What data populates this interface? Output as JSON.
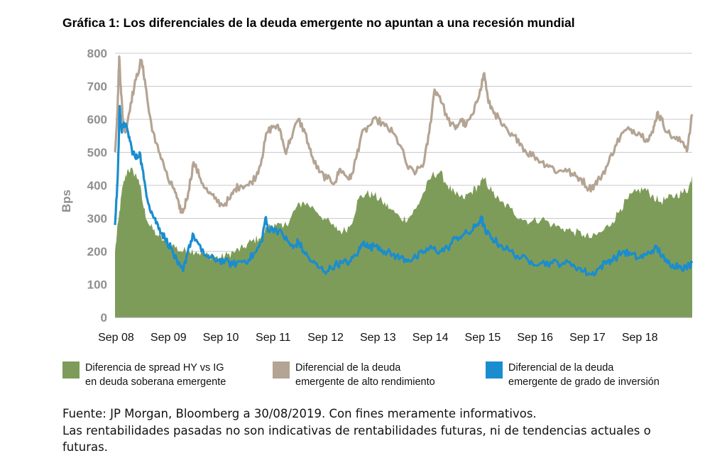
{
  "title": "Gráfica 1: Los diferenciales de la deuda emergente no apuntan a una recesión mundial",
  "chart_data": {
    "type": "area",
    "ylabel": "Bps",
    "ylim": [
      0,
      800
    ],
    "yticks": [
      0,
      100,
      200,
      300,
      400,
      500,
      600,
      700,
      800
    ],
    "xlim": [
      2008.65,
      2019.67
    ],
    "xticks": [
      {
        "label": "Sep 08",
        "x": 2008.67
      },
      {
        "label": "Sep 09",
        "x": 2009.67
      },
      {
        "label": "Sep 10",
        "x": 2010.67
      },
      {
        "label": "Sep 11",
        "x": 2011.67
      },
      {
        "label": "Sep 12",
        "x": 2012.67
      },
      {
        "label": "Sep 13",
        "x": 2013.67
      },
      {
        "label": "Sep 14",
        "x": 2014.67
      },
      {
        "label": "Sep 15",
        "x": 2015.67
      },
      {
        "label": "Sep 16",
        "x": 2016.67
      },
      {
        "label": "Sep 17",
        "x": 2017.67
      },
      {
        "label": "Sep 18",
        "x": 2018.67
      }
    ],
    "grid": true,
    "series": [
      {
        "name": "Diferencia de spread HY vs IG en deuda soberana emergente",
        "kind": "area",
        "color": "#7e9c59",
        "points": [
          [
            2008.65,
            200
          ],
          [
            2008.72,
            300
          ],
          [
            2008.8,
            400
          ],
          [
            2008.9,
            450
          ],
          [
            2009.0,
            440
          ],
          [
            2009.1,
            420
          ],
          [
            2009.2,
            330
          ],
          [
            2009.3,
            280
          ],
          [
            2009.45,
            250
          ],
          [
            2009.6,
            230
          ],
          [
            2009.75,
            220
          ],
          [
            2009.9,
            200
          ],
          [
            2010.05,
            205
          ],
          [
            2010.2,
            200
          ],
          [
            2010.35,
            190
          ],
          [
            2010.5,
            185
          ],
          [
            2010.65,
            180
          ],
          [
            2010.8,
            190
          ],
          [
            2010.95,
            200
          ],
          [
            2011.1,
            210
          ],
          [
            2011.25,
            230
          ],
          [
            2011.4,
            240
          ],
          [
            2011.55,
            270
          ],
          [
            2011.7,
            285
          ],
          [
            2011.85,
            270
          ],
          [
            2012.0,
            300
          ],
          [
            2012.1,
            330
          ],
          [
            2012.25,
            350
          ],
          [
            2012.45,
            330
          ],
          [
            2012.65,
            300
          ],
          [
            2012.85,
            270
          ],
          [
            2013.0,
            260
          ],
          [
            2013.15,
            280
          ],
          [
            2013.3,
            360
          ],
          [
            2013.45,
            375
          ],
          [
            2013.6,
            370
          ],
          [
            2013.75,
            350
          ],
          [
            2013.9,
            330
          ],
          [
            2014.1,
            300
          ],
          [
            2014.25,
            300
          ],
          [
            2014.4,
            330
          ],
          [
            2014.55,
            380
          ],
          [
            2014.7,
            430
          ],
          [
            2014.85,
            440
          ],
          [
            2015.0,
            400
          ],
          [
            2015.15,
            370
          ],
          [
            2015.3,
            360
          ],
          [
            2015.45,
            380
          ],
          [
            2015.6,
            400
          ],
          [
            2015.7,
            420
          ],
          [
            2015.85,
            380
          ],
          [
            2016.0,
            350
          ],
          [
            2016.2,
            330
          ],
          [
            2016.4,
            300
          ],
          [
            2016.6,
            290
          ],
          [
            2016.8,
            300
          ],
          [
            2017.0,
            280
          ],
          [
            2017.2,
            270
          ],
          [
            2017.4,
            260
          ],
          [
            2017.6,
            250
          ],
          [
            2017.75,
            240
          ],
          [
            2017.95,
            260
          ],
          [
            2018.15,
            290
          ],
          [
            2018.3,
            330
          ],
          [
            2018.45,
            360
          ],
          [
            2018.6,
            380
          ],
          [
            2018.75,
            390
          ],
          [
            2018.9,
            370
          ],
          [
            2019.05,
            350
          ],
          [
            2019.2,
            360
          ],
          [
            2019.35,
            370
          ],
          [
            2019.5,
            380
          ],
          [
            2019.6,
            390
          ],
          [
            2019.67,
            430
          ]
        ]
      },
      {
        "name": "Diferencial de la deuda emergente de alto rendimiento",
        "kind": "line",
        "color": "#b4a493",
        "points": [
          [
            2008.65,
            500
          ],
          [
            2008.7,
            640
          ],
          [
            2008.73,
            790
          ],
          [
            2008.76,
            700
          ],
          [
            2008.8,
            600
          ],
          [
            2008.85,
            560
          ],
          [
            2008.95,
            650
          ],
          [
            2009.05,
            720
          ],
          [
            2009.15,
            780
          ],
          [
            2009.22,
            720
          ],
          [
            2009.3,
            620
          ],
          [
            2009.42,
            530
          ],
          [
            2009.55,
            480
          ],
          [
            2009.68,
            410
          ],
          [
            2009.78,
            390
          ],
          [
            2009.88,
            330
          ],
          [
            2009.95,
            320
          ],
          [
            2010.05,
            380
          ],
          [
            2010.15,
            470
          ],
          [
            2010.28,
            420
          ],
          [
            2010.42,
            380
          ],
          [
            2010.55,
            360
          ],
          [
            2010.7,
            340
          ],
          [
            2010.85,
            360
          ],
          [
            2010.95,
            390
          ],
          [
            2011.05,
            400
          ],
          [
            2011.2,
            400
          ],
          [
            2011.35,
            430
          ],
          [
            2011.45,
            480
          ],
          [
            2011.55,
            560
          ],
          [
            2011.68,
            580
          ],
          [
            2011.8,
            570
          ],
          [
            2011.9,
            500
          ],
          [
            2012.0,
            540
          ],
          [
            2012.15,
            600
          ],
          [
            2012.28,
            560
          ],
          [
            2012.4,
            490
          ],
          [
            2012.55,
            440
          ],
          [
            2012.7,
            420
          ],
          [
            2012.85,
            410
          ],
          [
            2012.95,
            450
          ],
          [
            2013.05,
            430
          ],
          [
            2013.15,
            420
          ],
          [
            2013.25,
            480
          ],
          [
            2013.35,
            550
          ],
          [
            2013.5,
            580
          ],
          [
            2013.65,
            600
          ],
          [
            2013.8,
            580
          ],
          [
            2013.95,
            560
          ],
          [
            2014.1,
            520
          ],
          [
            2014.25,
            450
          ],
          [
            2014.4,
            440
          ],
          [
            2014.55,
            470
          ],
          [
            2014.65,
            560
          ],
          [
            2014.75,
            690
          ],
          [
            2014.85,
            670
          ],
          [
            2015.0,
            600
          ],
          [
            2015.15,
            570
          ],
          [
            2015.25,
            600
          ],
          [
            2015.35,
            580
          ],
          [
            2015.5,
            620
          ],
          [
            2015.62,
            690
          ],
          [
            2015.7,
            740
          ],
          [
            2015.78,
            650
          ],
          [
            2015.9,
            620
          ],
          [
            2016.05,
            580
          ],
          [
            2016.2,
            550
          ],
          [
            2016.35,
            540
          ],
          [
            2016.5,
            500
          ],
          [
            2016.65,
            490
          ],
          [
            2016.8,
            470
          ],
          [
            2016.95,
            460
          ],
          [
            2017.1,
            440
          ],
          [
            2017.25,
            450
          ],
          [
            2017.4,
            430
          ],
          [
            2017.55,
            420
          ],
          [
            2017.7,
            390
          ],
          [
            2017.8,
            400
          ],
          [
            2017.9,
            420
          ],
          [
            2018.05,
            460
          ],
          [
            2018.2,
            520
          ],
          [
            2018.35,
            560
          ],
          [
            2018.5,
            570
          ],
          [
            2018.65,
            560
          ],
          [
            2018.8,
            540
          ],
          [
            2018.92,
            560
          ],
          [
            2019.0,
            620
          ],
          [
            2019.08,
            600
          ],
          [
            2019.2,
            560
          ],
          [
            2019.35,
            540
          ],
          [
            2019.5,
            530
          ],
          [
            2019.58,
            510
          ],
          [
            2019.67,
            615
          ]
        ]
      },
      {
        "name": "Diferencial de la deuda emergente de grado de inversión",
        "kind": "line",
        "color": "#1a8dcf",
        "points": [
          [
            2008.65,
            280
          ],
          [
            2008.7,
            420
          ],
          [
            2008.74,
            640
          ],
          [
            2008.78,
            560
          ],
          [
            2008.82,
            590
          ],
          [
            2008.9,
            560
          ],
          [
            2008.97,
            510
          ],
          [
            2009.05,
            480
          ],
          [
            2009.12,
            500
          ],
          [
            2009.2,
            420
          ],
          [
            2009.3,
            340
          ],
          [
            2009.4,
            300
          ],
          [
            2009.5,
            270
          ],
          [
            2009.6,
            240
          ],
          [
            2009.72,
            210
          ],
          [
            2009.85,
            160
          ],
          [
            2009.95,
            140
          ],
          [
            2010.05,
            210
          ],
          [
            2010.15,
            250
          ],
          [
            2010.3,
            200
          ],
          [
            2010.45,
            180
          ],
          [
            2010.6,
            175
          ],
          [
            2010.75,
            170
          ],
          [
            2010.9,
            160
          ],
          [
            2011.05,
            170
          ],
          [
            2011.2,
            175
          ],
          [
            2011.35,
            200
          ],
          [
            2011.45,
            230
          ],
          [
            2011.52,
            300
          ],
          [
            2011.58,
            265
          ],
          [
            2011.7,
            270
          ],
          [
            2011.85,
            250
          ],
          [
            2011.95,
            230
          ],
          [
            2012.05,
            210
          ],
          [
            2012.15,
            230
          ],
          [
            2012.25,
            200
          ],
          [
            2012.4,
            170
          ],
          [
            2012.55,
            150
          ],
          [
            2012.7,
            140
          ],
          [
            2012.85,
            160
          ],
          [
            2013.0,
            165
          ],
          [
            2013.15,
            170
          ],
          [
            2013.3,
            200
          ],
          [
            2013.4,
            230
          ],
          [
            2013.5,
            210
          ],
          [
            2013.65,
            220
          ],
          [
            2013.8,
            200
          ],
          [
            2013.95,
            190
          ],
          [
            2014.1,
            180
          ],
          [
            2014.25,
            175
          ],
          [
            2014.4,
            180
          ],
          [
            2014.55,
            200
          ],
          [
            2014.7,
            210
          ],
          [
            2014.85,
            200
          ],
          [
            2015.0,
            210
          ],
          [
            2015.15,
            240
          ],
          [
            2015.3,
            250
          ],
          [
            2015.45,
            260
          ],
          [
            2015.55,
            280
          ],
          [
            2015.65,
            300
          ],
          [
            2015.72,
            260
          ],
          [
            2015.85,
            240
          ],
          [
            2016.0,
            220
          ],
          [
            2016.2,
            200
          ],
          [
            2016.4,
            180
          ],
          [
            2016.6,
            170
          ],
          [
            2016.8,
            165
          ],
          [
            2017.0,
            165
          ],
          [
            2017.2,
            165
          ],
          [
            2017.4,
            160
          ],
          [
            2017.6,
            140
          ],
          [
            2017.75,
            130
          ],
          [
            2017.9,
            150
          ],
          [
            2018.05,
            170
          ],
          [
            2018.2,
            180
          ],
          [
            2018.35,
            200
          ],
          [
            2018.5,
            190
          ],
          [
            2018.65,
            180
          ],
          [
            2018.8,
            190
          ],
          [
            2018.95,
            210
          ],
          [
            2019.05,
            200
          ],
          [
            2019.15,
            170
          ],
          [
            2019.3,
            160
          ],
          [
            2019.45,
            155
          ],
          [
            2019.55,
            150
          ],
          [
            2019.67,
            165
          ]
        ]
      }
    ]
  },
  "legend": [
    {
      "color": "#7e9c59",
      "line1": "Diferencia de spread HY vs IG",
      "line2": "en deuda soberana emergente"
    },
    {
      "color": "#b4a493",
      "line1": "Diferencial de la deuda",
      "line2": "emergente de alto rendimiento"
    },
    {
      "color": "#1a8dcf",
      "line1": "Diferencial de la deuda",
      "line2": "emergente de grado de inversión"
    }
  ],
  "source": {
    "line1": "Fuente: JP Morgan, Bloomberg a 30/08/2019. Con fines meramente informativos.",
    "line2": "Las rentabilidades pasadas no son indicativas de rentabilidades futuras, ni de tendencias actuales o",
    "line3": "futuras."
  }
}
